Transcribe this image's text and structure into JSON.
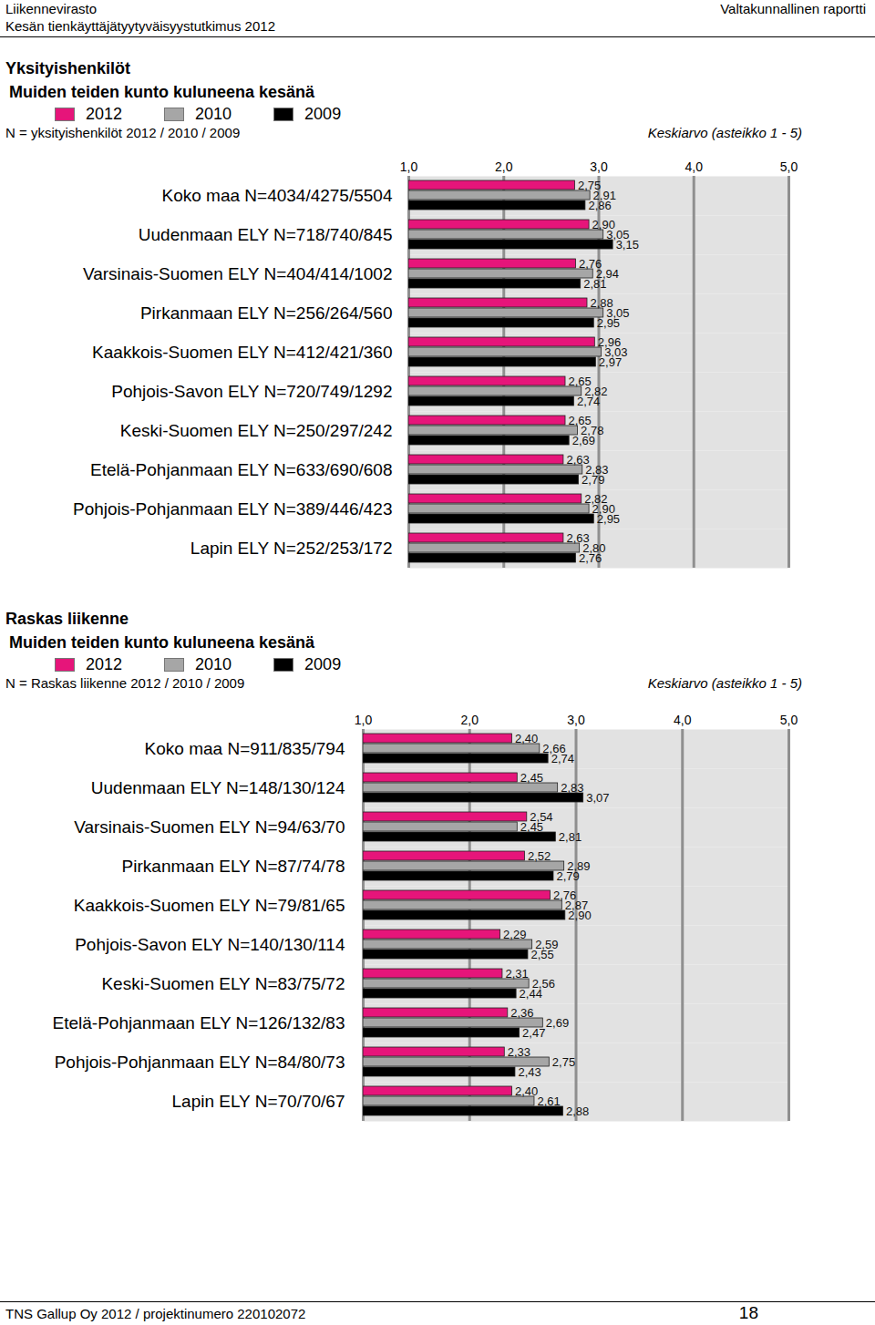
{
  "header": {
    "left": [
      "Liikennevirasto",
      "Kesän tienkäyttäjätyytyväisyystutkimus 2012"
    ],
    "right": "Valtakunnallinen raportti"
  },
  "footer": {
    "left": "TNS Gallup Oy 2012 / projektinumero 220102072",
    "right": "18"
  },
  "chart_data": [
    {
      "type": "bar",
      "orientation": "horizontal",
      "title": "Yksityishenkilöt",
      "subtitle": "Muiden teiden kunto kuluneena kesänä",
      "annotations": [
        "N = yksityishenkilöt 2012 / 2010 / 2009"
      ],
      "xlabel": "Keskiarvo (asteikko 1 - 5)",
      "categories": [
        "Koko maa N=4034/4275/5504",
        "Uudenmaan ELY N=718/740/845",
        "Varsinais-Suomen ELY N=404/414/1002",
        "Pirkanmaan ELY N=256/264/560",
        "Kaakkois-Suomen ELY N=412/421/360",
        "Pohjois-Savon ELY N=720/749/1292",
        "Keski-Suomen ELY N=250/297/242",
        "Etelä-Pohjanmaan ELY N=633/690/608",
        "Pohjois-Pohjanmaan ELY N=389/446/423",
        "Lapin ELY N=252/253/172"
      ],
      "series": [
        {
          "name": "2012",
          "color": "#e6157a",
          "values": [
            2.75,
            2.9,
            2.76,
            2.88,
            2.96,
            2.65,
            2.65,
            2.63,
            2.82,
            2.63
          ],
          "value_labels": [
            "2,75",
            "2,90",
            "2,76",
            "2,88",
            "2,96",
            "2,65",
            "2,65",
            "2,63",
            "2,82",
            "2,63"
          ]
        },
        {
          "name": "2010",
          "color": "#a6a6a6",
          "values": [
            2.91,
            3.05,
            2.94,
            3.05,
            3.03,
            2.82,
            2.78,
            2.83,
            2.9,
            2.8
          ],
          "value_labels": [
            "2,91",
            "3,05",
            "2,94",
            "3,05",
            "3,03",
            "2,82",
            "2,78",
            "2,83",
            "2,90",
            "2,80"
          ]
        },
        {
          "name": "2009",
          "color": "#000000",
          "values": [
            2.86,
            3.15,
            2.81,
            2.95,
            2.97,
            2.74,
            2.69,
            2.79,
            2.95,
            2.76
          ],
          "value_labels": [
            "2,86",
            "3,15",
            "2,81",
            "2,95",
            "2,97",
            "2,74",
            "2,69",
            "2,79",
            "2,95",
            "2,76"
          ]
        }
      ],
      "xlim": [
        1,
        5
      ],
      "xticks": [
        {
          "value": 1,
          "label": "1,0"
        },
        {
          "value": 2,
          "label": "2,0"
        },
        {
          "value": 3,
          "label": "3,0"
        },
        {
          "value": 4,
          "label": "4,0"
        },
        {
          "value": 5,
          "label": "5,0"
        }
      ],
      "grid": true,
      "legend": "top-left",
      "data_labels": true
    },
    {
      "type": "bar",
      "orientation": "horizontal",
      "title": "Raskas liikenne",
      "subtitle": "Muiden teiden kunto kuluneena kesänä",
      "annotations": [
        "N = Raskas liikenne 2012 / 2010 / 2009"
      ],
      "xlabel": "Keskiarvo (asteikko 1 - 5)",
      "categories": [
        "Koko maa N=911/835/794",
        "Uudenmaan ELY N=148/130/124",
        "Varsinais-Suomen ELY N=94/63/70",
        "Pirkanmaan ELY N=87/74/78",
        "Kaakkois-Suomen ELY N=79/81/65",
        "Pohjois-Savon ELY N=140/130/114",
        "Keski-Suomen ELY N=83/75/72",
        "Etelä-Pohjanmaan ELY N=126/132/83",
        "Pohjois-Pohjanmaan ELY N=84/80/73",
        "Lapin ELY N=70/70/67"
      ],
      "series": [
        {
          "name": "2012",
          "color": "#e6157a",
          "values": [
            2.4,
            2.45,
            2.54,
            2.52,
            2.76,
            2.29,
            2.31,
            2.36,
            2.33,
            2.4
          ],
          "value_labels": [
            "2,40",
            "2,45",
            "2,54",
            "2,52",
            "2,76",
            "2,29",
            "2,31",
            "2,36",
            "2,33",
            "2,40"
          ]
        },
        {
          "name": "2010",
          "color": "#a6a6a6",
          "values": [
            2.66,
            2.83,
            2.45,
            2.89,
            2.87,
            2.59,
            2.56,
            2.69,
            2.75,
            2.61
          ],
          "value_labels": [
            "2,66",
            "2,83",
            "2,45",
            "2,89",
            "2,87",
            "2,59",
            "2,56",
            "2,69",
            "2,75",
            "2,61"
          ]
        },
        {
          "name": "2009",
          "color": "#000000",
          "values": [
            2.74,
            3.07,
            2.81,
            2.79,
            2.9,
            2.55,
            2.44,
            2.47,
            2.43,
            2.88
          ],
          "value_labels": [
            "2,74",
            "3,07",
            "2,81",
            "2,79",
            "2,90",
            "2,55",
            "2,44",
            "2,47",
            "2,43",
            "2,88"
          ]
        }
      ],
      "xlim": [
        1,
        5
      ],
      "xticks": [
        {
          "value": 1,
          "label": "1,0"
        },
        {
          "value": 2,
          "label": "2,0"
        },
        {
          "value": 3,
          "label": "3,0"
        },
        {
          "value": 4,
          "label": "4,0"
        },
        {
          "value": 5,
          "label": "5,0"
        }
      ],
      "grid": true,
      "legend": "top-left",
      "data_labels": true
    }
  ]
}
